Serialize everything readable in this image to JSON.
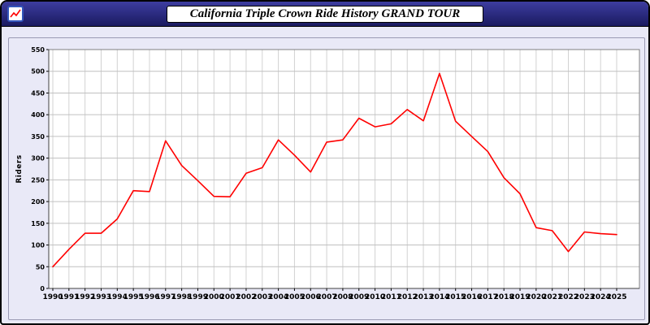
{
  "window": {
    "title": "California Triple Crown Ride History GRAND TOUR",
    "icon": "mini-line-chart-icon"
  },
  "chart_data": {
    "type": "line",
    "title": "California Triple Crown Ride History GRAND TOUR",
    "xlabel": "",
    "ylabel": "Riders",
    "ylim": [
      0,
      550
    ],
    "ytick_step": 50,
    "grid": true,
    "legend": "none",
    "line_color": "#ff0000",
    "years": [
      1990,
      1991,
      1992,
      1993,
      1994,
      1995,
      1996,
      1997,
      1998,
      1999,
      2000,
      2001,
      2002,
      2003,
      2004,
      2005,
      2006,
      2007,
      2008,
      2009,
      2010,
      2011,
      2012,
      2013,
      2014,
      2015,
      2016,
      2017,
      2018,
      2019,
      2020,
      2021,
      2022,
      2023,
      2024,
      2025
    ],
    "series": [
      {
        "name": "Riders",
        "values": [
          50,
          90,
          127,
          127,
          160,
          225,
          223,
          340,
          283,
          248,
          212,
          211,
          265,
          278,
          342,
          307,
          268,
          337,
          342,
          392,
          372,
          379,
          412,
          386,
          495,
          385,
          350,
          315,
          255,
          218,
          140,
          133,
          85,
          130,
          126,
          124
        ]
      }
    ]
  },
  "colors": {
    "titlebar": "#2b2b80",
    "body_bg": "#e9e9f7",
    "plot_bg": "#ffffff",
    "grid_h": "#c0c0c0",
    "grid_v": "#d2d2d2",
    "axis": "#404040",
    "border": "#808080",
    "line": "#ff0000"
  }
}
